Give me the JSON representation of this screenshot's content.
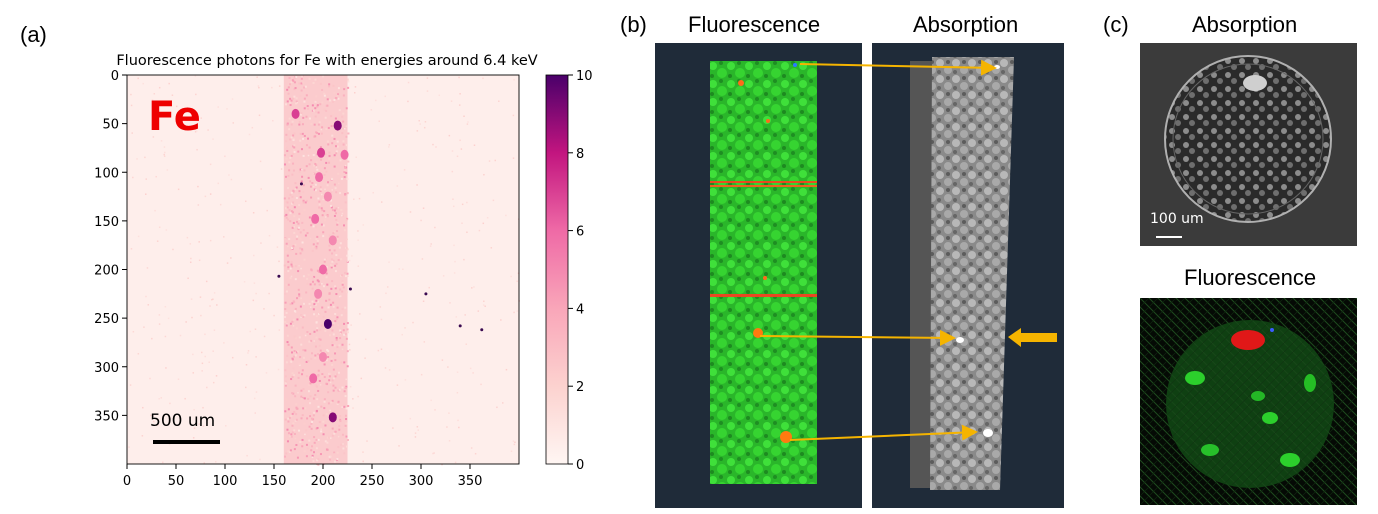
{
  "panel_labels": {
    "a": "(a)",
    "b": "(b)",
    "c": "(c)"
  },
  "panel_b": {
    "left_title": "Fluorescence",
    "right_title": "Absorption"
  },
  "panel_c": {
    "top_title": "Absorption",
    "bottom_title": "Fluorescence",
    "scale_label": "100 um"
  },
  "colors": {
    "arrow": "#f5b400",
    "panel_bg": "#1f2b39",
    "green": "#2fd22a"
  },
  "chart_data": {
    "type": "heatmap",
    "title": "Fluorescence photons for Fe with energies around 6.4 keV",
    "element_label": "Fe",
    "scale_bar_label": "500 um",
    "xlim": [
      0,
      400
    ],
    "ylim": [
      400,
      0
    ],
    "x_ticks": [
      0,
      50,
      100,
      150,
      200,
      250,
      300,
      350
    ],
    "y_ticks": [
      0,
      50,
      100,
      150,
      200,
      250,
      300,
      350
    ],
    "x_tick_labels": [
      "0",
      "50",
      "100",
      "150",
      "200",
      "250",
      "300",
      "350"
    ],
    "y_tick_labels": [
      "0",
      "50",
      "100",
      "150",
      "200",
      "250",
      "300",
      "350"
    ],
    "colorbar": {
      "min": 0,
      "max": 10,
      "ticks": [
        0,
        2,
        4,
        6,
        8,
        10
      ],
      "tick_labels": [
        "0",
        "2",
        "4",
        "6",
        "8",
        "10"
      ],
      "colormap": "RdPu"
    },
    "band": {
      "x_start": 160,
      "x_end": 225,
      "mean_intensity": 2.5
    },
    "hotspots": [
      {
        "x": 172,
        "y": 40,
        "value": 7
      },
      {
        "x": 215,
        "y": 52,
        "value": 9
      },
      {
        "x": 198,
        "y": 80,
        "value": 7
      },
      {
        "x": 222,
        "y": 82,
        "value": 6
      },
      {
        "x": 196,
        "y": 105,
        "value": 6
      },
      {
        "x": 205,
        "y": 125,
        "value": 5
      },
      {
        "x": 192,
        "y": 148,
        "value": 6
      },
      {
        "x": 210,
        "y": 170,
        "value": 5
      },
      {
        "x": 200,
        "y": 200,
        "value": 6
      },
      {
        "x": 195,
        "y": 225,
        "value": 5
      },
      {
        "x": 205,
        "y": 256,
        "value": 10
      },
      {
        "x": 200,
        "y": 290,
        "value": 5
      },
      {
        "x": 190,
        "y": 312,
        "value": 6
      },
      {
        "x": 210,
        "y": 352,
        "value": 9
      }
    ],
    "dots": [
      {
        "x": 178,
        "y": 112
      },
      {
        "x": 228,
        "y": 220
      },
      {
        "x": 305,
        "y": 225
      },
      {
        "x": 362,
        "y": 262
      },
      {
        "x": 340,
        "y": 258
      },
      {
        "x": 155,
        "y": 207
      }
    ]
  }
}
